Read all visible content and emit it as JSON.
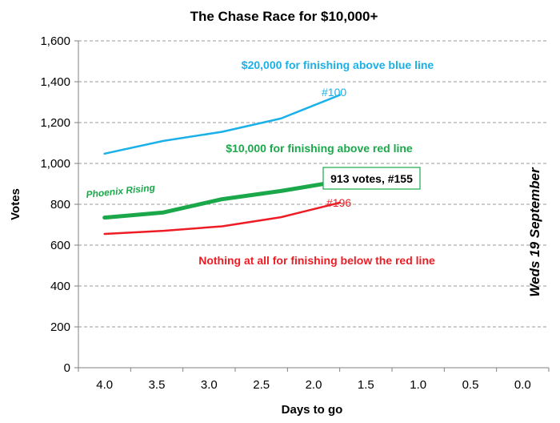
{
  "chart_data": {
    "type": "line",
    "title": "The Chase Race for $10,000+",
    "xlabel": "Days to go",
    "ylabel": "Votes",
    "ylim": [
      0,
      1600
    ],
    "y_ticks": [
      0,
      200,
      400,
      600,
      800,
      1000,
      1200,
      1400,
      1600
    ],
    "y_tick_labels": [
      "0",
      "200",
      "400",
      "600",
      "800",
      "1,000",
      "1,200",
      "1,400",
      "1,600"
    ],
    "x_categories": [
      "4.0",
      "3.5",
      "3.0",
      "2.5",
      "2.0",
      "1.5",
      "1.0",
      "0.5",
      "0.0"
    ],
    "x_reversed": true,
    "grid": "horizontal dashed",
    "series": [
      {
        "name": "#100",
        "color": "#1ab0e8",
        "stroke_weight": "thin",
        "x": [
          4.0,
          3.5,
          3.0,
          2.5,
          2.0
        ],
        "values": [
          1048,
          1110,
          1155,
          1220,
          1335
        ]
      },
      {
        "name": "Phoenix Rising",
        "color": "#1aa84a",
        "stroke_weight": "thick",
        "x": [
          4.0,
          3.5,
          3.0,
          2.5,
          2.0
        ],
        "values": [
          735,
          760,
          825,
          865,
          913
        ]
      },
      {
        "name": "#196",
        "color": "#ee1c24",
        "stroke_weight": "thin",
        "x": [
          4.0,
          3.5,
          3.0,
          2.5,
          2.0
        ],
        "values": [
          655,
          670,
          692,
          737,
          808
        ]
      }
    ],
    "annotations": {
      "blue_note": {
        "text": "$20,000 for finishing above blue line",
        "color": "#1ab0e8"
      },
      "green_note": {
        "text": "$10,000 for finishing above red line",
        "color": "#1aa84a"
      },
      "red_note": {
        "text": "Nothing at all for finishing below the red line",
        "color": "#ee1c24"
      },
      "blue_end_label": {
        "text": "#100",
        "color": "#1ab0e8"
      },
      "red_end_label": {
        "text": "#196",
        "color": "#ee1c24"
      },
      "green_series_label": {
        "text": "Phoenix Rising",
        "color": "#1aa84a"
      },
      "callout": {
        "text": "913 votes, #155",
        "border_color": "#1aa84a"
      },
      "date_label": {
        "text": "Weds 19 September"
      }
    }
  }
}
